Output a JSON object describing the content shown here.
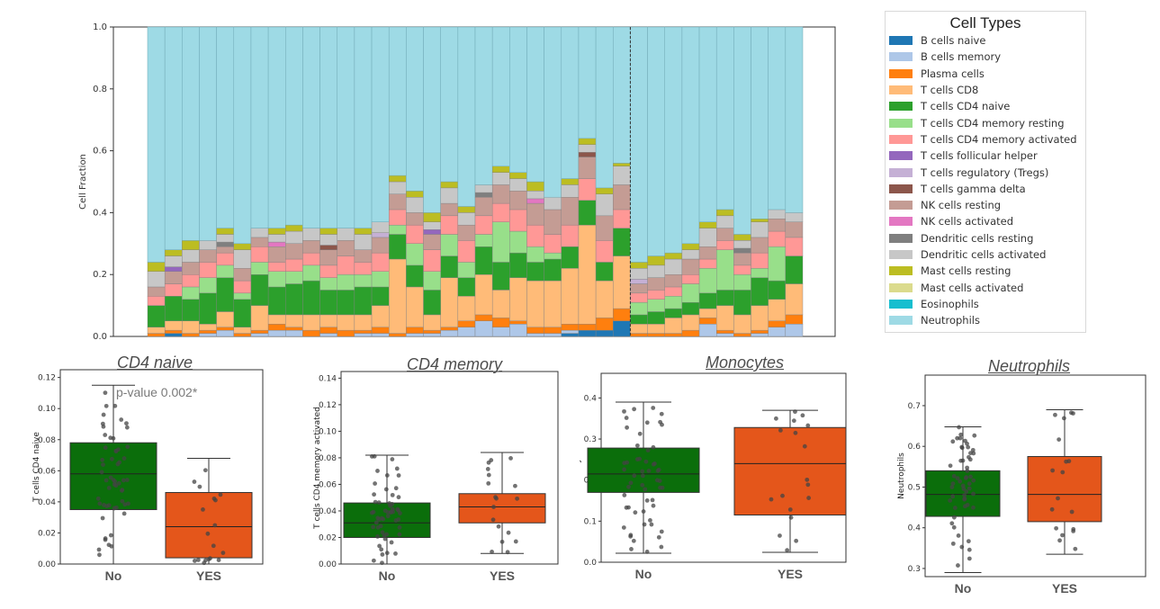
{
  "legend": {
    "title": "Cell Types",
    "items": [
      {
        "label": "B cells naive",
        "color": "#1f77b4"
      },
      {
        "label": "B cells memory",
        "color": "#aec7e8"
      },
      {
        "label": "Plasma cells",
        "color": "#ff7f0e"
      },
      {
        "label": "T cells CD8",
        "color": "#ffbb78"
      },
      {
        "label": "T cells CD4 naive",
        "color": "#2ca02c"
      },
      {
        "label": "T cells CD4 memory resting",
        "color": "#98df8a"
      },
      {
        "label": "T cells CD4 memory activated",
        "color": "#ff9896"
      },
      {
        "label": "T cells follicular helper",
        "color": "#9467bd"
      },
      {
        "label": "T cells regulatory (Tregs)",
        "color": "#c5b0d5"
      },
      {
        "label": "T cells gamma delta",
        "color": "#8c564b"
      },
      {
        "label": "NK cells resting",
        "color": "#c49c94"
      },
      {
        "label": "NK cells activated",
        "color": "#e377c2"
      },
      {
        "label": "Dendritic cells resting",
        "color": "#7f7f7f"
      },
      {
        "label": "Dendritic cells activated",
        "color": "#c7c7c7"
      },
      {
        "label": "Mast cells resting",
        "color": "#bcbd22"
      },
      {
        "label": "Mast cells activated",
        "color": "#dbdb8d"
      },
      {
        "label": "Eosinophils",
        "color": "#17becf"
      },
      {
        "label": "Neutrophils",
        "color": "#9edae5"
      }
    ]
  },
  "chart_data": [
    {
      "type": "bar",
      "stacked": true,
      "ylabel": "Cell Fraction",
      "ylim": [
        0,
        1.0
      ],
      "yticks": [
        "0.0",
        "0.2",
        "0.4",
        "0.6",
        "0.8",
        "1.0"
      ],
      "samples_left": 28,
      "samples_right": 10,
      "series_order": [
        "B cells naive",
        "B cells memory",
        "Plasma cells",
        "T cells CD8",
        "T cells CD4 naive",
        "T cells CD4 memory resting",
        "T cells CD4 memory activated",
        "T cells follicular helper",
        "T cells regulatory (Tregs)",
        "T cells gamma delta",
        "NK cells resting",
        "NK cells activated",
        "Dendritic cells resting",
        "Dendritic cells activated",
        "Mast cells resting",
        "Mast cells activated",
        "Eosinophils",
        "Neutrophils"
      ],
      "cd4naive": [
        0.07,
        0.08,
        0.07,
        0.1,
        0.11,
        0.09,
        0.1,
        0.09,
        0.1,
        0.11,
        0.08,
        0.08,
        0.09,
        0.06,
        0.08,
        0.07,
        0.08,
        0.07,
        0.06,
        0.09,
        0.09,
        0.08,
        0.06,
        0.07,
        0.07,
        0.08,
        0.06,
        0.09,
        0.03,
        0.04,
        0.03,
        0.04,
        0.05,
        0.05,
        0.08,
        0.09,
        0.06,
        0.09
      ],
      "cd4mem": [
        0.0,
        0.0,
        0.04,
        0.05,
        0.04,
        0.02,
        0.04,
        0.05,
        0.04,
        0.05,
        0.04,
        0.05,
        0.04,
        0.05,
        0.03,
        0.07,
        0.06,
        0.07,
        0.05,
        0.04,
        0.13,
        0.07,
        0.05,
        0.02,
        0.0,
        0.0,
        0.0,
        0.0,
        0.04,
        0.04,
        0.04,
        0.06,
        0.08,
        0.13,
        0.05,
        0.03,
        0.11,
        0.0
      ],
      "t8": [
        0.02,
        0.03,
        0.04,
        0.02,
        0.05,
        0.02,
        0.08,
        0.03,
        0.04,
        0.05,
        0.04,
        0.05,
        0.05,
        0.07,
        0.24,
        0.13,
        0.05,
        0.16,
        0.08,
        0.13,
        0.09,
        0.14,
        0.15,
        0.15,
        0.18,
        0.32,
        0.12,
        0.17,
        0.03,
        0.03,
        0.05,
        0.05,
        0.03,
        0.08,
        0.06,
        0.08,
        0.07,
        0.1
      ],
      "bmem": [
        0.0,
        0.0,
        0.0,
        0.01,
        0.02,
        0.0,
        0.01,
        0.02,
        0.02,
        0.0,
        0.01,
        0.0,
        0.01,
        0.01,
        0.0,
        0.01,
        0.01,
        0.02,
        0.03,
        0.05,
        0.03,
        0.04,
        0.01,
        0.01,
        0.01,
        0.0,
        0.0,
        0.0,
        0.0,
        0.0,
        0.0,
        0.0,
        0.04,
        0.01,
        0.0,
        0.01,
        0.03,
        0.04
      ],
      "bnaive": [
        0.0,
        0.01,
        0.0,
        0.0,
        0.0,
        0.0,
        0.0,
        0.0,
        0.0,
        0.0,
        0.0,
        0.0,
        0.0,
        0.0,
        0.0,
        0.0,
        0.0,
        0.0,
        0.0,
        0.0,
        0.0,
        0.0,
        0.0,
        0.0,
        0.01,
        0.02,
        0.02,
        0.05,
        0.0,
        0.0,
        0.0,
        0.0,
        0.0,
        0.0,
        0.0,
        0.0,
        0.0,
        0.0
      ],
      "plasma": [
        0.01,
        0.01,
        0.01,
        0.01,
        0.01,
        0.01,
        0.01,
        0.02,
        0.01,
        0.02,
        0.02,
        0.02,
        0.01,
        0.02,
        0.01,
        0.02,
        0.01,
        0.01,
        0.02,
        0.02,
        0.03,
        0.01,
        0.02,
        0.02,
        0.02,
        0.02,
        0.04,
        0.04,
        0.01,
        0.01,
        0.01,
        0.02,
        0.02,
        0.01,
        0.01,
        0.01,
        0.02,
        0.03
      ],
      "tmemact": [
        0.03,
        0.04,
        0.04,
        0.05,
        0.04,
        0.04,
        0.05,
        0.03,
        0.04,
        0.04,
        0.04,
        0.06,
        0.04,
        0.06,
        0.05,
        0.06,
        0.07,
        0.06,
        0.07,
        0.06,
        0.06,
        0.07,
        0.07,
        0.06,
        0.07,
        0.07,
        0.07,
        0.06,
        0.03,
        0.03,
        0.03,
        0.03,
        0.03,
        0.03,
        0.03,
        0.05,
        0.05,
        0.06
      ],
      "nkrest": [
        0.03,
        0.04,
        0.04,
        0.04,
        0.02,
        0.04,
        0.03,
        0.05,
        0.05,
        0.04,
        0.05,
        0.05,
        0.04,
        0.05,
        0.05,
        0.04,
        0.05,
        0.04,
        0.05,
        0.06,
        0.06,
        0.06,
        0.07,
        0.08,
        0.09,
        0.07,
        0.08,
        0.08,
        0.03,
        0.04,
        0.04,
        0.05,
        0.04,
        0.04,
        0.04,
        0.05,
        0.04,
        0.05
      ],
      "other": [
        0.05,
        0.05,
        0.04,
        0.03,
        0.04,
        0.06,
        0.03,
        0.04,
        0.04,
        0.04,
        0.05,
        0.04,
        0.05,
        0.05,
        0.04,
        0.05,
        0.04,
        0.05,
        0.04,
        0.04,
        0.04,
        0.04,
        0.04,
        0.04,
        0.04,
        0.04,
        0.07,
        0.06,
        0.05,
        0.04,
        0.05,
        0.03,
        0.06,
        0.04,
        0.04,
        0.05,
        0.03,
        0.03
      ],
      "mast": [
        0.03,
        0.02,
        0.03,
        0.0,
        0.02,
        0.02,
        0.0,
        0.02,
        0.02,
        0.0,
        0.02,
        0.0,
        0.02,
        0.0,
        0.02,
        0.02,
        0.03,
        0.02,
        0.02,
        0.0,
        0.02,
        0.02,
        0.03,
        0.0,
        0.02,
        0.02,
        0.02,
        0.01,
        0.02,
        0.03,
        0.02,
        0.02,
        0.02,
        0.02,
        0.02,
        0.01,
        0.0,
        0.0
      ]
    },
    {
      "type": "box",
      "title": "CD4 naive",
      "ylabel": "T cells CD4 naive",
      "categories": [
        "No",
        "YES"
      ],
      "ylim": [
        0,
        0.125
      ],
      "yticks": [
        "0.00",
        "0.02",
        "0.04",
        "0.06",
        "0.08",
        "0.10",
        "0.12"
      ],
      "annotation": "p-value 0.002*",
      "boxes": [
        {
          "min": 0.0,
          "q1": 0.035,
          "median": 0.058,
          "q3": 0.078,
          "max": 0.115,
          "color": "#0b6e0b"
        },
        {
          "min": 0.0,
          "q1": 0.004,
          "median": 0.024,
          "q3": 0.046,
          "max": 0.068,
          "color": "#e4561b"
        }
      ]
    },
    {
      "type": "box",
      "title": "CD4 memory",
      "ylabel": "T cells CD4 memory activated",
      "categories": [
        "No",
        "YES"
      ],
      "ylim": [
        0,
        0.145
      ],
      "yticks": [
        "0.00",
        "0.02",
        "0.04",
        "0.06",
        "0.08",
        "0.10",
        "0.12",
        "0.14"
      ],
      "boxes": [
        {
          "min": 0.0,
          "q1": 0.02,
          "median": 0.031,
          "q3": 0.046,
          "max": 0.082,
          "color": "#0b6e0b"
        },
        {
          "min": 0.008,
          "q1": 0.031,
          "median": 0.043,
          "q3": 0.053,
          "max": 0.084,
          "color": "#e4561b"
        }
      ]
    },
    {
      "type": "box",
      "title": "Monocytes",
      "ylabel": "Monocytes",
      "categories": [
        "No",
        "YES"
      ],
      "ylim": [
        0,
        0.46
      ],
      "yticks": [
        "0.0",
        "0.1",
        "0.2",
        "0.3",
        "0.4"
      ],
      "boxes": [
        {
          "min": 0.022,
          "q1": 0.17,
          "median": 0.215,
          "q3": 0.278,
          "max": 0.39,
          "color": "#0b6e0b"
        },
        {
          "min": 0.024,
          "q1": 0.115,
          "median": 0.24,
          "q3": 0.328,
          "max": 0.37,
          "color": "#e4561b"
        }
      ]
    },
    {
      "type": "box",
      "title": "Neutrophils",
      "ylabel": "Neutrophils",
      "categories": [
        "No",
        "YES"
      ],
      "ylim": [
        0.28,
        0.775
      ],
      "yticks": [
        "0.3",
        "0.4",
        "0.5",
        "0.6",
        "0.7"
      ],
      "boxes": [
        {
          "min": 0.29,
          "q1": 0.428,
          "median": 0.482,
          "q3": 0.54,
          "max": 0.648,
          "color": "#0b6e0b"
        },
        {
          "min": 0.335,
          "q1": 0.415,
          "median": 0.482,
          "q3": 0.575,
          "max": 0.69,
          "color": "#e4561b"
        }
      ]
    }
  ]
}
